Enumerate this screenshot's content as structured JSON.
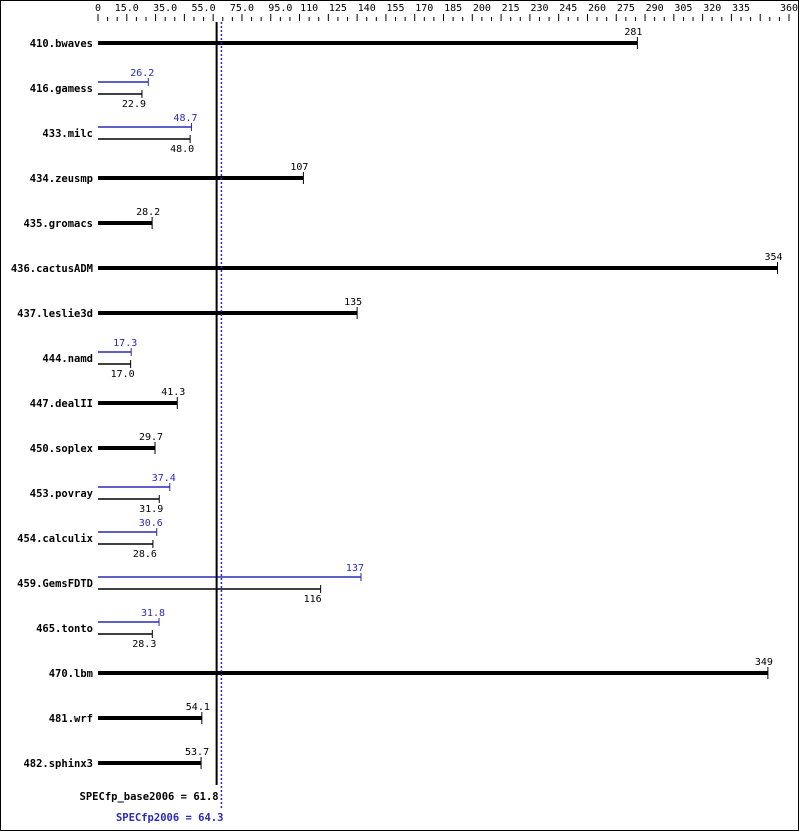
{
  "chart_data": {
    "type": "bar",
    "orientation": "horizontal",
    "xlim": [
      0,
      360
    ],
    "tick_labels": [
      "0",
      "15.0",
      "35.0",
      "55.0",
      "75.0",
      "95.0",
      "110",
      "125",
      "140",
      "155",
      "170",
      "185",
      "200",
      "215",
      "230",
      "245",
      "260",
      "275",
      "290",
      "305",
      "320",
      "335",
      "360"
    ],
    "tick_values": [
      0,
      15,
      35,
      55,
      75,
      95,
      110,
      125,
      140,
      155,
      170,
      185,
      200,
      215,
      230,
      245,
      260,
      275,
      290,
      305,
      320,
      335,
      360
    ],
    "categories": [
      "410.bwaves",
      "416.gamess",
      "433.milc",
      "434.zeusmp",
      "435.gromacs",
      "436.cactusADM",
      "437.leslie3d",
      "444.namd",
      "447.dealII",
      "450.soplex",
      "453.povray",
      "454.calculix",
      "459.GemsFDTD",
      "465.tonto",
      "470.lbm",
      "481.wrf",
      "482.sphinx3"
    ],
    "series": [
      {
        "name": "SPECfp_base2006",
        "values": [
          281,
          22.9,
          48.0,
          107,
          28.2,
          354,
          135,
          17.0,
          41.3,
          29.7,
          31.9,
          28.6,
          116,
          28.3,
          349,
          54.1,
          53.7
        ],
        "labels": [
          "281",
          "22.9",
          "48.0",
          "107",
          "28.2",
          "354",
          "135",
          "17.0",
          "41.3",
          "29.7",
          "31.9",
          "28.6",
          "116",
          "28.3",
          "349",
          "54.1",
          "53.7"
        ]
      },
      {
        "name": "SPECfp2006",
        "values": [
          281,
          26.2,
          48.7,
          107,
          28.2,
          354,
          135,
          17.3,
          41.3,
          29.7,
          37.4,
          30.6,
          137,
          31.8,
          349,
          54.1,
          53.7
        ],
        "labels": [
          "281",
          "26.2",
          "48.7",
          "107",
          "28.2",
          "354",
          "135",
          "17.3",
          "41.3",
          "29.7",
          "37.4",
          "30.6",
          "137",
          "31.8",
          "349",
          "54.1",
          "53.7"
        ]
      }
    ],
    "reference_lines": [
      {
        "label": "SPECfp_base2006 = 61.8",
        "value": 61.8,
        "color": "#000000"
      },
      {
        "label": "SPECfp2006 = 64.3",
        "value": 64.3,
        "color": "#2a2ab8"
      }
    ],
    "colors": {
      "base": "#000000",
      "peak": "#2a2ab8"
    }
  }
}
